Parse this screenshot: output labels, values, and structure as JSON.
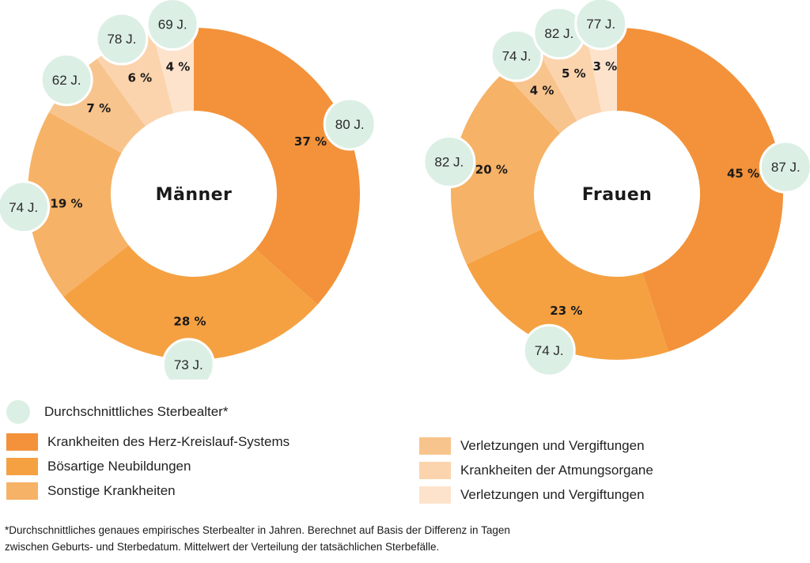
{
  "chart_data": [
    {
      "type": "pie",
      "title": "Männer",
      "categories": [
        "Krankheiten des Herz-Kreislauf-Systems",
        "Bösartige Neubildungen",
        "Sonstige Krankheiten",
        "Verletzungen und Vergiftungen",
        "Krankheiten der Atmungsorgane",
        "Verletzungen und Vergiftungen"
      ],
      "values": [
        37,
        28,
        19,
        7,
        6,
        4
      ],
      "value_labels": [
        "37 %",
        "28 %",
        "19 %",
        "7 %",
        "6 %",
        "4 %"
      ],
      "ages": [
        "80 J.",
        "73 J.",
        "74 J.",
        "62 J.",
        "78 J.",
        "69 J."
      ],
      "colors": [
        "#f3923a",
        "#f5a142",
        "#f6b266",
        "#f8c48d",
        "#fbd4ad",
        "#fde3cc"
      ]
    },
    {
      "type": "pie",
      "title": "Frauen",
      "categories": [
        "Krankheiten des Herz-Kreislauf-Systems",
        "Bösartige Neubildungen",
        "Sonstige Krankheiten",
        "Verletzungen und Vergiftungen",
        "Krankheiten der Atmungsorgane",
        "Verletzungen und Vergiftungen"
      ],
      "values": [
        45,
        23,
        20,
        4,
        5,
        3
      ],
      "value_labels": [
        "45 %",
        "23 %",
        "20 %",
        "4 %",
        "5 %",
        "3 %"
      ],
      "ages": [
        "87 J.",
        "74 J.",
        "82 J.",
        "74 J.",
        "82 J.",
        "77 J."
      ],
      "colors": [
        "#f3923a",
        "#f5a142",
        "#f6b266",
        "#f8c48d",
        "#fbd4ad",
        "#fde3cc"
      ]
    }
  ],
  "legend": {
    "age_label": "Durchschnittliches Sterbealter*",
    "age_color": "#dcefe5",
    "items": [
      {
        "label": "Krankheiten des Herz-Kreislauf-Systems",
        "color": "#f3923a"
      },
      {
        "label": "Bösartige Neubildungen",
        "color": "#f5a142"
      },
      {
        "label": "Sonstige Krankheiten",
        "color": "#f6b266"
      },
      {
        "label": "Verletzungen und Vergiftungen",
        "color": "#f8c48d"
      },
      {
        "label": "Krankheiten der Atmungsorgane",
        "color": "#fbd4ad"
      },
      {
        "label": "Verletzungen und Vergiftungen",
        "color": "#fde3cc"
      }
    ]
  },
  "footnote": {
    "line1": "*Durchschnittliches genaues empirisches Sterbealter in Jahren. Berechnet auf Basis der Differenz in Tagen",
    "line2": "zwischen Geburts- und Sterbedatum. Mittelwert der Verteilung der tatsächlichen Sterbefälle."
  }
}
